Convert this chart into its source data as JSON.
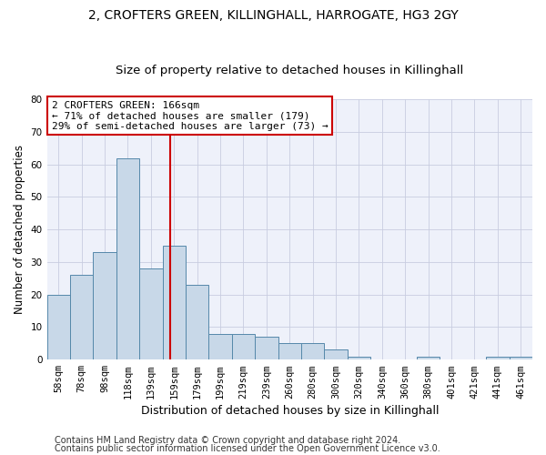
{
  "title": "2, CROFTERS GREEN, KILLINGHALL, HARROGATE, HG3 2GY",
  "subtitle": "Size of property relative to detached houses in Killinghall",
  "xlabel": "Distribution of detached houses by size in Killinghall",
  "ylabel": "Number of detached properties",
  "categories": [
    "58sqm",
    "78sqm",
    "98sqm",
    "118sqm",
    "139sqm",
    "159sqm",
    "179sqm",
    "199sqm",
    "219sqm",
    "239sqm",
    "260sqm",
    "280sqm",
    "300sqm",
    "320sqm",
    "340sqm",
    "360sqm",
    "380sqm",
    "401sqm",
    "421sqm",
    "441sqm",
    "461sqm"
  ],
  "values": [
    20,
    26,
    33,
    62,
    28,
    35,
    23,
    8,
    8,
    7,
    5,
    5,
    3,
    1,
    0,
    0,
    1,
    0,
    0,
    1,
    1
  ],
  "bar_color": "#c8d8e8",
  "bar_edge_color": "#5588aa",
  "ylim": [
    0,
    80
  ],
  "yticks": [
    0,
    10,
    20,
    30,
    40,
    50,
    60,
    70,
    80
  ],
  "vline_color": "#cc0000",
  "annotation_text": "2 CROFTERS GREEN: 166sqm\n← 71% of detached houses are smaller (179)\n29% of semi-detached houses are larger (73) →",
  "annotation_box_color": "#cc0000",
  "footer_line1": "Contains HM Land Registry data © Crown copyright and database right 2024.",
  "footer_line2": "Contains public sector information licensed under the Open Government Licence v3.0.",
  "background_color": "#eef1fa",
  "grid_color": "#c8cde0",
  "title_fontsize": 10,
  "subtitle_fontsize": 9.5,
  "xlabel_fontsize": 9,
  "ylabel_fontsize": 8.5,
  "tick_fontsize": 7.5,
  "footer_fontsize": 7
}
